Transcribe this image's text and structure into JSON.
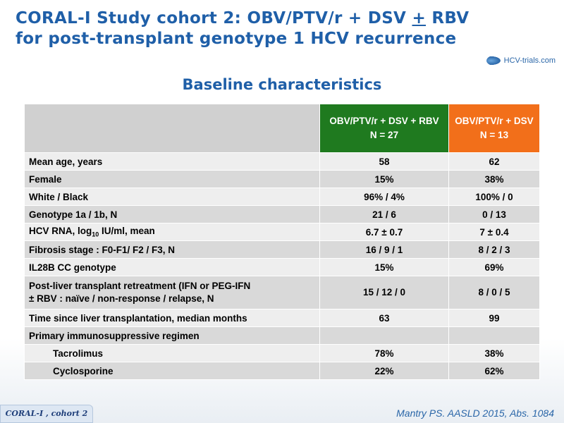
{
  "title": {
    "line1_a": "CORAL-I Study cohort 2: OBV/PTV/r + DSV ",
    "line1_u": "+",
    "line1_b": " RBV",
    "line2": "for post-transplant genotype 1 HCV recurrence"
  },
  "logo": {
    "text": "HCV-trials.com"
  },
  "subtitle": "Baseline characteristics",
  "table": {
    "headers": {
      "col1_line1": "OBV/PTV/r + DSV + RBV",
      "col1_line2": "N = 27",
      "col2_line1": "OBV/PTV/r + DSV",
      "col2_line2": "N = 13"
    },
    "rows": [
      {
        "label": "Mean age, years",
        "v1": "58",
        "v2": "62"
      },
      {
        "label": "Female",
        "v1": "15%",
        "v2": "38%"
      },
      {
        "label": "White / Black",
        "v1": "96% / 4%",
        "v2": "100% / 0"
      },
      {
        "label": "Genotype 1a / 1b, N",
        "v1": "21 / 6",
        "v2": "0 / 13"
      },
      {
        "label_a": "HCV RNA, log",
        "label_sub": "10",
        "label_b": " IU/ml, mean",
        "v1": "6.7 ± 0.7",
        "v2": "7 ± 0.4"
      },
      {
        "label": "Fibrosis stage : F0-F1/ F2 / F3, N",
        "v1": "16 / 9 / 1",
        "v2": "8 / 2 / 3"
      },
      {
        "label": "IL28B CC genotype",
        "v1": "15%",
        "v2": "69%"
      },
      {
        "label_line1": "Post-liver transplant retreatment (IFN or PEG-IFN",
        "label_line2": "± RBV : naïve / non-response / relapse, N",
        "v1": "15 / 12 / 0",
        "v2": "8 / 0 / 5"
      },
      {
        "label": "Time since liver transplantation, median months",
        "v1": "63",
        "v2": "99"
      },
      {
        "label": "Primary immunosuppressive regimen",
        "v1": "",
        "v2": ""
      },
      {
        "label": "Tacrolimus",
        "v1": "78%",
        "v2": "38%"
      },
      {
        "label": "Cyclosporine",
        "v1": "22%",
        "v2": "62%"
      }
    ]
  },
  "footer": {
    "left": "CORAL-I , cohort 2",
    "right": "Mantry PS. AASLD 2015, Abs. 1084"
  },
  "colors": {
    "title": "#1f5fa8",
    "green_header": "#1f7a1f",
    "orange_header": "#f26f1a"
  }
}
